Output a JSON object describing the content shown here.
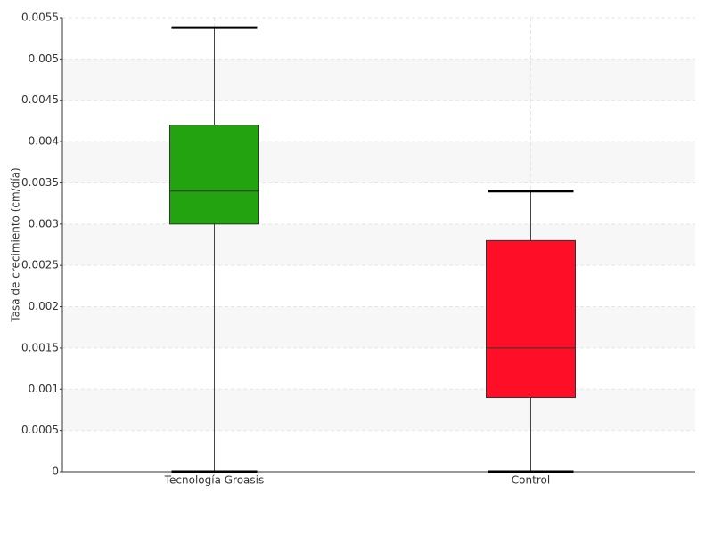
{
  "chart_data": {
    "type": "box",
    "y_label": "Tasa de crecimiento (cm/día)",
    "categories": [
      "Tecnología Groasis",
      "Control"
    ],
    "colors": [
      "#22a30f",
      "#ff0f27"
    ],
    "min": [
      0,
      0
    ],
    "q1": [
      0.003,
      0.0009
    ],
    "median": [
      0.0034,
      0.0015
    ],
    "q3": [
      0.0042,
      0.0028
    ],
    "max": [
      0.00538,
      0.0034
    ],
    "ylim": [
      0,
      0.0055
    ],
    "yticks": [
      0,
      0.0005,
      0.001,
      0.0015,
      0.002,
      0.0025,
      0.003,
      0.0035,
      0.004,
      0.0045,
      0.005,
      0.0055
    ],
    "grid": true
  }
}
